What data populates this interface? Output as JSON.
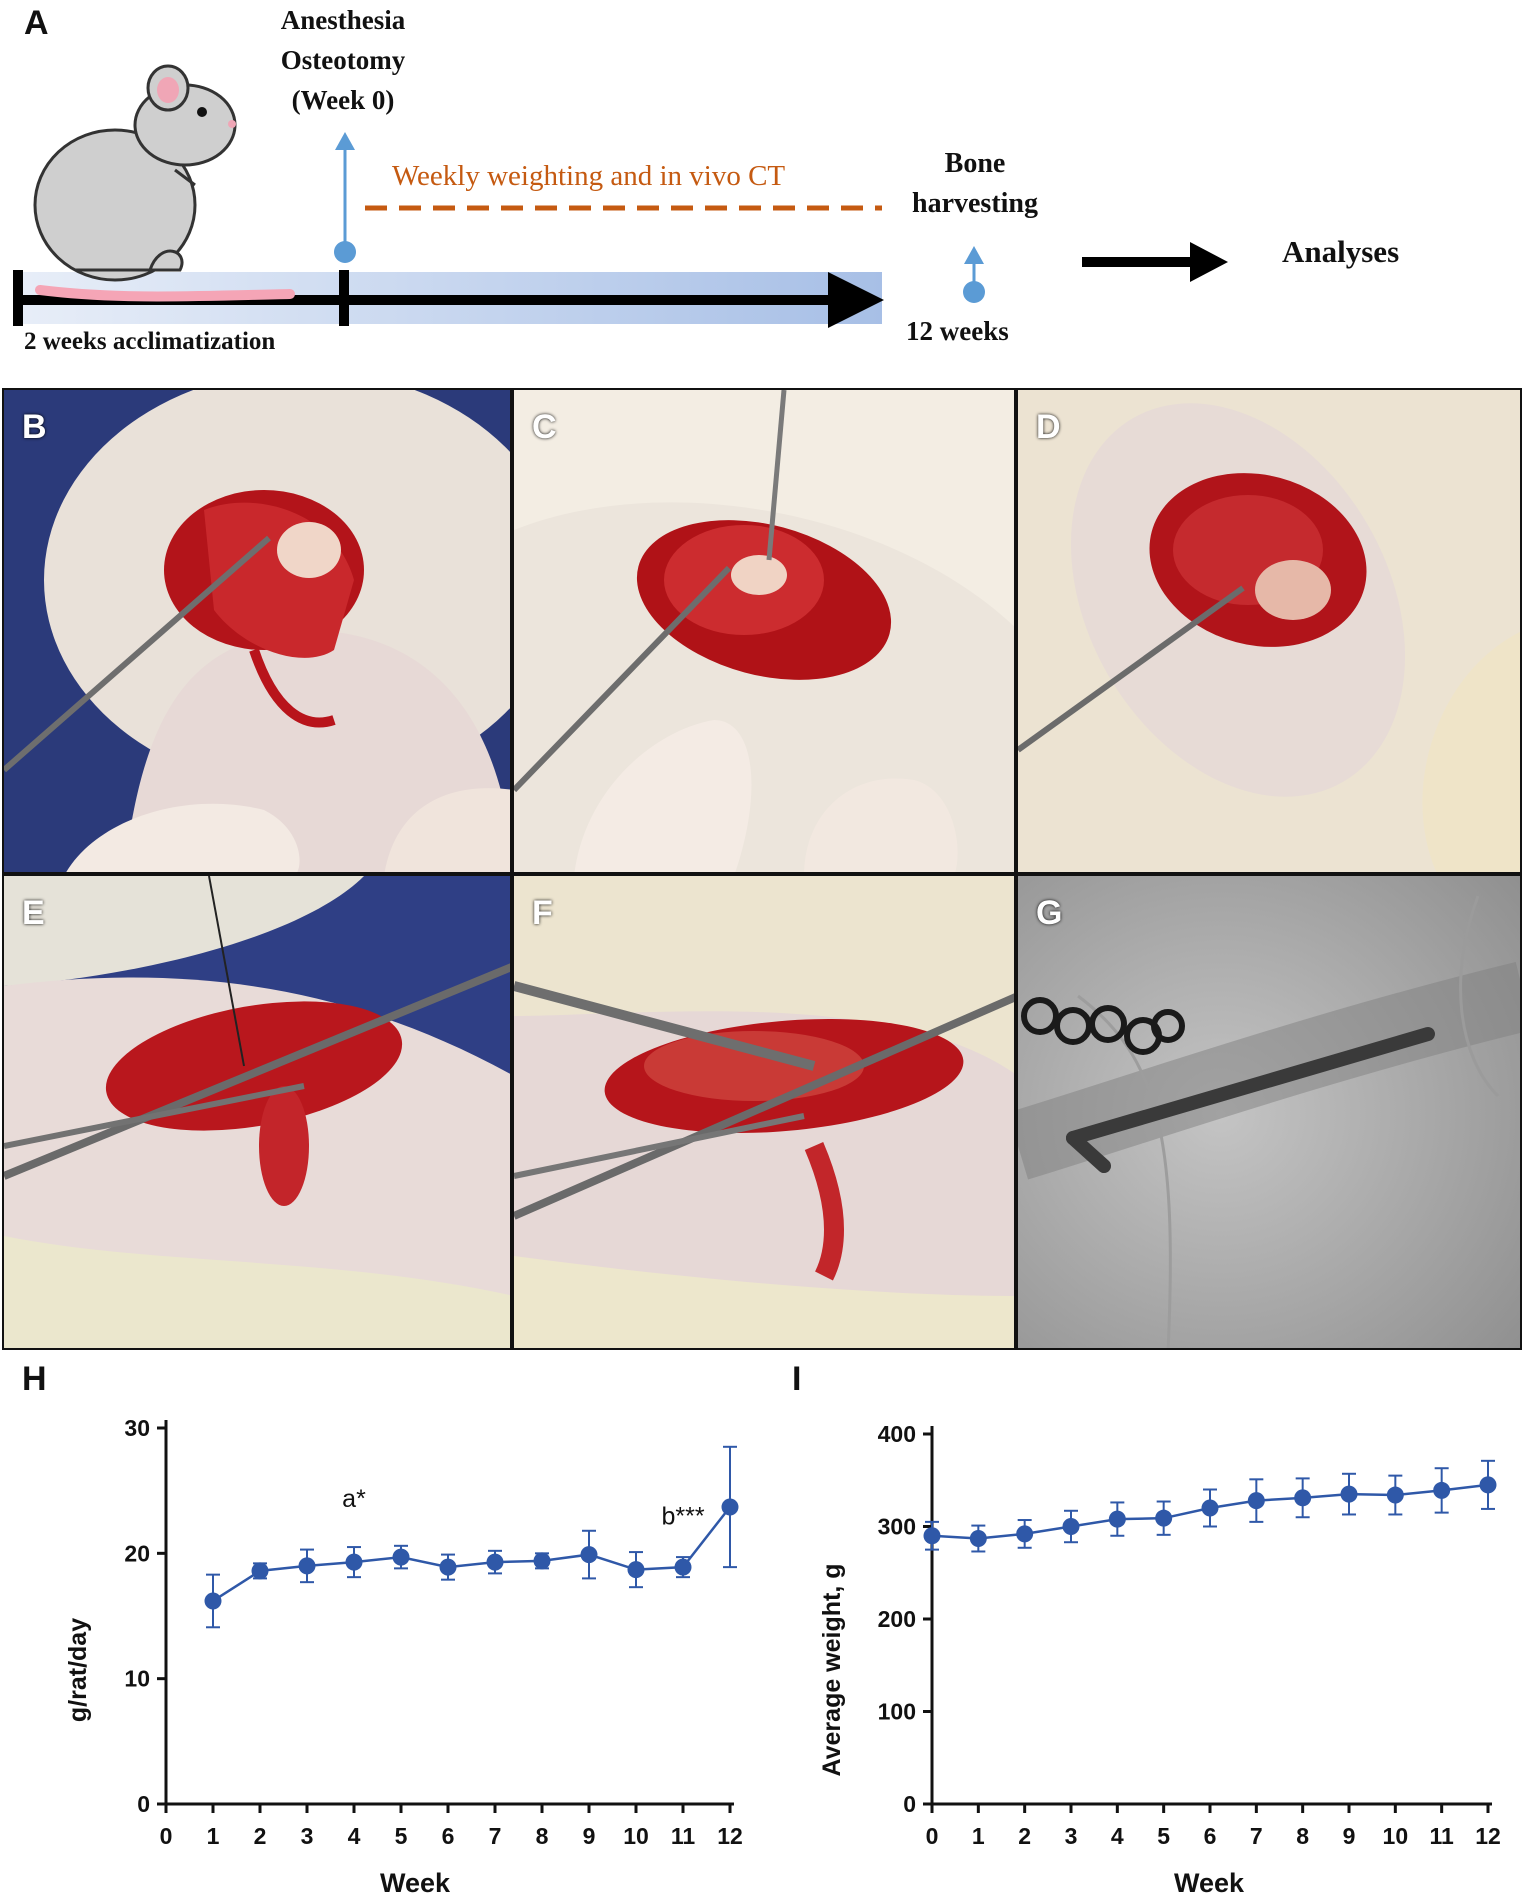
{
  "panels": {
    "A": "A",
    "B": "B",
    "C": "C",
    "D": "D",
    "E": "E",
    "F": "F",
    "G": "G",
    "H": "H",
    "I": "I"
  },
  "timeline": {
    "event1_line1": "Anesthesia",
    "event1_line2": "Osteotomy",
    "event1_line3": "(Week 0)",
    "dashed_label": "Weekly weighting and in vivo CT",
    "event2_line1": "Bone",
    "event2_line2": "harvesting",
    "acclimatization": "2 weeks acclimatization",
    "end_label": "12 weeks",
    "analyses": "Analyses",
    "colors": {
      "marker": "#5b9bd5",
      "dashed": "#c55a11",
      "bar": "#b4c7e7"
    }
  },
  "chart_data": [
    {
      "type": "line",
      "panel": "H",
      "xlabel": "Week",
      "ylabel": "g/rat/day",
      "xlim": [
        0,
        12
      ],
      "ylim": [
        0,
        30
      ],
      "xticks": [
        "0",
        "1",
        "2",
        "3",
        "4",
        "5",
        "6",
        "7",
        "8",
        "9",
        "10",
        "11",
        "12"
      ],
      "yticks": [
        "0",
        "10",
        "20",
        "30"
      ],
      "x": [
        1,
        2,
        3,
        4,
        5,
        6,
        7,
        8,
        9,
        10,
        11,
        12
      ],
      "values": [
        16.2,
        18.6,
        19.0,
        19.3,
        19.7,
        18.9,
        19.3,
        19.4,
        19.9,
        18.7,
        18.9,
        23.7
      ],
      "errors": [
        2.1,
        0.6,
        1.3,
        1.2,
        0.9,
        1.0,
        0.9,
        0.6,
        1.9,
        1.4,
        0.8,
        4.8
      ],
      "annotations": [
        {
          "text": "a*",
          "x": 4,
          "y": 23.7
        },
        {
          "text": "b***",
          "x": 11,
          "y": 22.3
        }
      ],
      "color": "#2f58a8"
    },
    {
      "type": "line",
      "panel": "I",
      "xlabel": "Week",
      "ylabel": "Average weight, g",
      "xlim": [
        0,
        12
      ],
      "ylim": [
        0,
        400
      ],
      "xticks": [
        "0",
        "1",
        "2",
        "3",
        "4",
        "5",
        "6",
        "7",
        "8",
        "9",
        "10",
        "11",
        "12"
      ],
      "yticks": [
        "0",
        "100",
        "200",
        "300",
        "400"
      ],
      "x": [
        0,
        1,
        2,
        3,
        4,
        5,
        6,
        7,
        8,
        9,
        10,
        11,
        12
      ],
      "values": [
        290,
        287,
        292,
        300,
        308,
        309,
        320,
        328,
        331,
        335,
        334,
        339,
        345
      ],
      "errors": [
        15,
        14,
        15,
        17,
        18,
        18,
        20,
        23,
        21,
        22,
        21,
        24,
        26
      ],
      "color": "#2f58a8"
    }
  ]
}
